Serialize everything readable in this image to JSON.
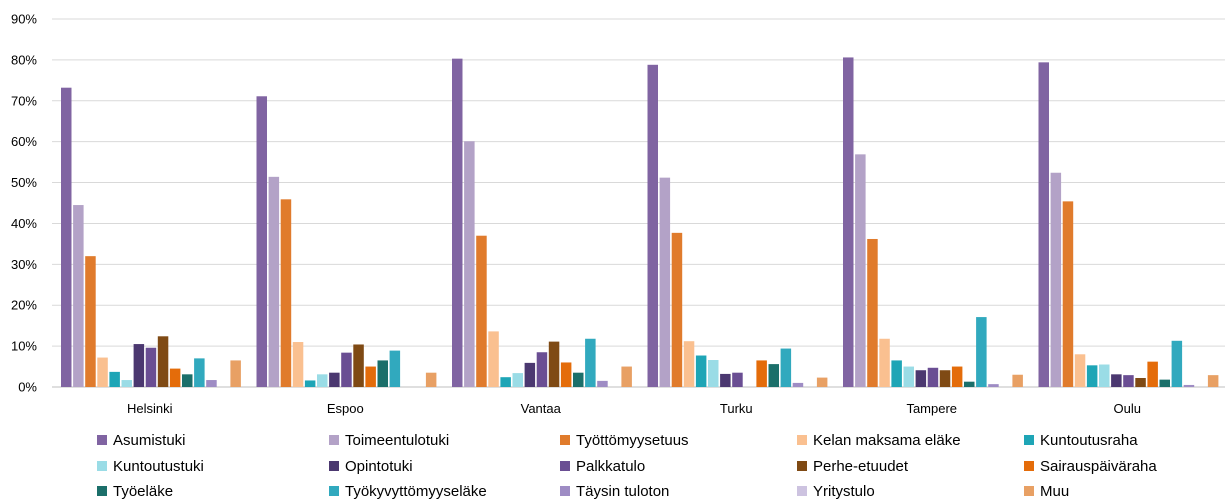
{
  "chart_data": {
    "type": "bar",
    "title": "",
    "xlabel": "",
    "ylabel": "",
    "ylim": [
      0,
      90
    ],
    "yticks": [
      0,
      10,
      20,
      30,
      40,
      50,
      60,
      70,
      80,
      90
    ],
    "ytick_labels": [
      "0%",
      "10%",
      "20%",
      "30%",
      "40%",
      "50%",
      "60%",
      "70%",
      "80%",
      "90%"
    ],
    "grid": true,
    "legend_position": "bottom",
    "categories": [
      "Helsinki",
      "Espoo",
      "Vantaa",
      "Turku",
      "Tampere",
      "Oulu"
    ],
    "series": [
      {
        "name": "Asumistuki",
        "color": "#8064A2",
        "values": [
          73.2,
          71.1,
          80.3,
          78.8,
          80.6,
          79.4
        ]
      },
      {
        "name": "Toimeentulotuki",
        "color": "#B3A2C7",
        "values": [
          44.5,
          51.4,
          60.1,
          51.2,
          56.9,
          52.4
        ]
      },
      {
        "name": "Työttömyysetuus",
        "color": "#E07B2C",
        "values": [
          32.0,
          45.9,
          37.0,
          37.7,
          36.2,
          45.4
        ]
      },
      {
        "name": "Kelan maksama eläke",
        "color": "#FAC090",
        "values": [
          7.2,
          11.0,
          13.6,
          11.2,
          11.8,
          8.0
        ]
      },
      {
        "name": "Kuntoutusraha",
        "color": "#1EA5B6",
        "values": [
          3.7,
          1.6,
          2.4,
          7.7,
          6.5,
          5.3
        ]
      },
      {
        "name": "Kuntoutustuki",
        "color": "#9ADCE6",
        "values": [
          1.7,
          3.1,
          3.4,
          6.6,
          5.0,
          5.5
        ]
      },
      {
        "name": "Opintotuki",
        "color": "#4B3870",
        "values": [
          10.5,
          3.5,
          5.9,
          3.2,
          4.1,
          3.1
        ]
      },
      {
        "name": "Palkkatulo",
        "color": "#6A4E93",
        "values": [
          9.6,
          8.4,
          8.5,
          3.5,
          4.7,
          2.9
        ]
      },
      {
        "name": "Perhe-etuudet",
        "color": "#7F4A14",
        "values": [
          12.4,
          10.4,
          11.1,
          0.0,
          4.1,
          2.2
        ]
      },
      {
        "name": "Sairauspäiväraha",
        "color": "#E46C0A",
        "values": [
          4.5,
          5.0,
          6.0,
          6.5,
          5.0,
          6.2
        ]
      },
      {
        "name": "Työeläke",
        "color": "#1B6F6A",
        "values": [
          3.1,
          6.5,
          3.5,
          5.6,
          1.3,
          1.8
        ]
      },
      {
        "name": "Työkyvyttömyyseläke",
        "color": "#31A9BE",
        "values": [
          7.0,
          8.9,
          11.8,
          9.4,
          17.1,
          11.3
        ]
      },
      {
        "name": "Täysin tuloton",
        "color": "#9E8CC4",
        "values": [
          1.7,
          0.0,
          1.5,
          1.0,
          0.7,
          0.5
        ]
      },
      {
        "name": "Yritystulo",
        "color": "#CDC3E0",
        "values": [
          0.0,
          0.0,
          0.0,
          0.0,
          0.0,
          0.0
        ]
      },
      {
        "name": "Muu",
        "color": "#E8A064",
        "values": [
          6.5,
          3.5,
          5.0,
          2.3,
          3.0,
          2.9
        ]
      }
    ]
  }
}
